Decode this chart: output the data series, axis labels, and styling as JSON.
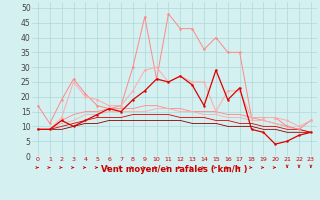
{
  "xlabel": "Vent moyen/en rafales ( km/h )",
  "background_color": "#d4f0f0",
  "grid_color": "#b0d8d8",
  "x_values": [
    0,
    1,
    2,
    3,
    4,
    5,
    6,
    7,
    8,
    9,
    10,
    11,
    12,
    13,
    14,
    15,
    16,
    17,
    18,
    19,
    20,
    21,
    22,
    23
  ],
  "ylim": [
    0,
    52
  ],
  "yticks": [
    0,
    5,
    10,
    15,
    20,
    25,
    30,
    35,
    40,
    45,
    50
  ],
  "series": [
    {
      "color": "#ff8888",
      "linewidth": 0.7,
      "marker": "o",
      "markersize": 1.5,
      "values": [
        17,
        11,
        19,
        26,
        21,
        17,
        16,
        17,
        30,
        47,
        26,
        48,
        43,
        43,
        36,
        40,
        35,
        35,
        13,
        13,
        13,
        10,
        9,
        12
      ]
    },
    {
      "color": "#ffaaaa",
      "linewidth": 0.7,
      "marker": "o",
      "markersize": 1.5,
      "values": [
        9,
        9,
        13,
        25,
        20,
        19,
        17,
        17,
        22,
        29,
        30,
        25,
        27,
        25,
        25,
        15,
        22,
        22,
        13,
        13,
        13,
        12,
        10,
        12
      ]
    },
    {
      "color": "#dd0000",
      "linewidth": 0.9,
      "marker": "o",
      "markersize": 1.5,
      "values": [
        9,
        9,
        12,
        10,
        12,
        14,
        16,
        15,
        19,
        22,
        26,
        25,
        27,
        24,
        17,
        29,
        19,
        23,
        9,
        8,
        4,
        5,
        7,
        8
      ]
    },
    {
      "color": "#ff8888",
      "linewidth": 0.6,
      "marker": null,
      "values": [
        9,
        9,
        12,
        14,
        15,
        15,
        16,
        16,
        16,
        17,
        17,
        16,
        16,
        15,
        15,
        15,
        14,
        14,
        13,
        12,
        11,
        10,
        9,
        8
      ]
    },
    {
      "color": "#ffaaaa",
      "linewidth": 0.6,
      "marker": null,
      "values": [
        9,
        9,
        11,
        12,
        14,
        14,
        15,
        15,
        15,
        15,
        16,
        16,
        15,
        15,
        14,
        14,
        13,
        13,
        12,
        12,
        11,
        10,
        9,
        8
      ]
    },
    {
      "color": "#dd0000",
      "linewidth": 0.6,
      "marker": null,
      "values": [
        9,
        9,
        10,
        11,
        12,
        13,
        13,
        13,
        14,
        14,
        14,
        14,
        13,
        13,
        13,
        12,
        12,
        11,
        11,
        10,
        10,
        9,
        9,
        8
      ]
    },
    {
      "color": "#880000",
      "linewidth": 0.6,
      "marker": null,
      "values": [
        9,
        9,
        9,
        10,
        11,
        11,
        12,
        12,
        12,
        12,
        12,
        12,
        12,
        11,
        11,
        11,
        10,
        10,
        10,
        9,
        9,
        8,
        8,
        8
      ]
    }
  ],
  "arrow_color": "#cc0000",
  "xtick_color": "#cc0000",
  "ytick_color": "#444444",
  "xlabel_color": "#cc0000",
  "xtick_fontsize": 4.5,
  "ytick_fontsize": 5.5,
  "xlabel_fontsize": 6.0
}
